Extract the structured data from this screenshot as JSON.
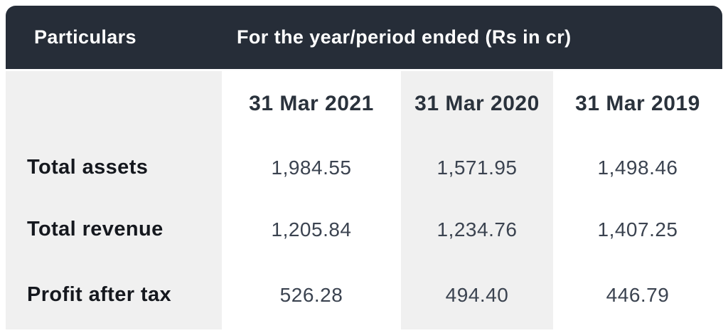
{
  "table": {
    "header": {
      "particulars_label": "Particulars",
      "period_label": "For the year/period ended (Rs in cr)"
    },
    "columns": [
      "31 Mar 2021",
      "31 Mar 2020",
      "31 Mar 2019"
    ],
    "rows": [
      {
        "label": "Total assets",
        "values": [
          "1,984.55",
          "1,571.95",
          "1,498.46"
        ]
      },
      {
        "label": "Total revenue",
        "values": [
          "1,205.84",
          "1,234.76",
          "1,407.25"
        ]
      },
      {
        "label": "Profit after tax",
        "values": [
          "526.28",
          "494.40",
          "446.79"
        ]
      }
    ],
    "colors": {
      "header_bg": "#262d38",
      "header_text": "#ffffff",
      "stripe_bg": "#f0f0f0",
      "label_text": "#15181e",
      "value_text": "#3b4350",
      "date_text": "#2a323c"
    }
  },
  "chart_data": {
    "type": "table",
    "title": "For the year/period ended (Rs in cr)",
    "categories": [
      "31 Mar 2021",
      "31 Mar 2020",
      "31 Mar 2019"
    ],
    "series": [
      {
        "name": "Total assets",
        "values": [
          1984.55,
          1571.95,
          1498.46
        ]
      },
      {
        "name": "Total revenue",
        "values": [
          1205.84,
          1234.76,
          1407.25
        ]
      },
      {
        "name": "Profit after tax",
        "values": [
          526.28,
          494.4,
          446.79
        ]
      }
    ],
    "units": "Rs in cr"
  }
}
